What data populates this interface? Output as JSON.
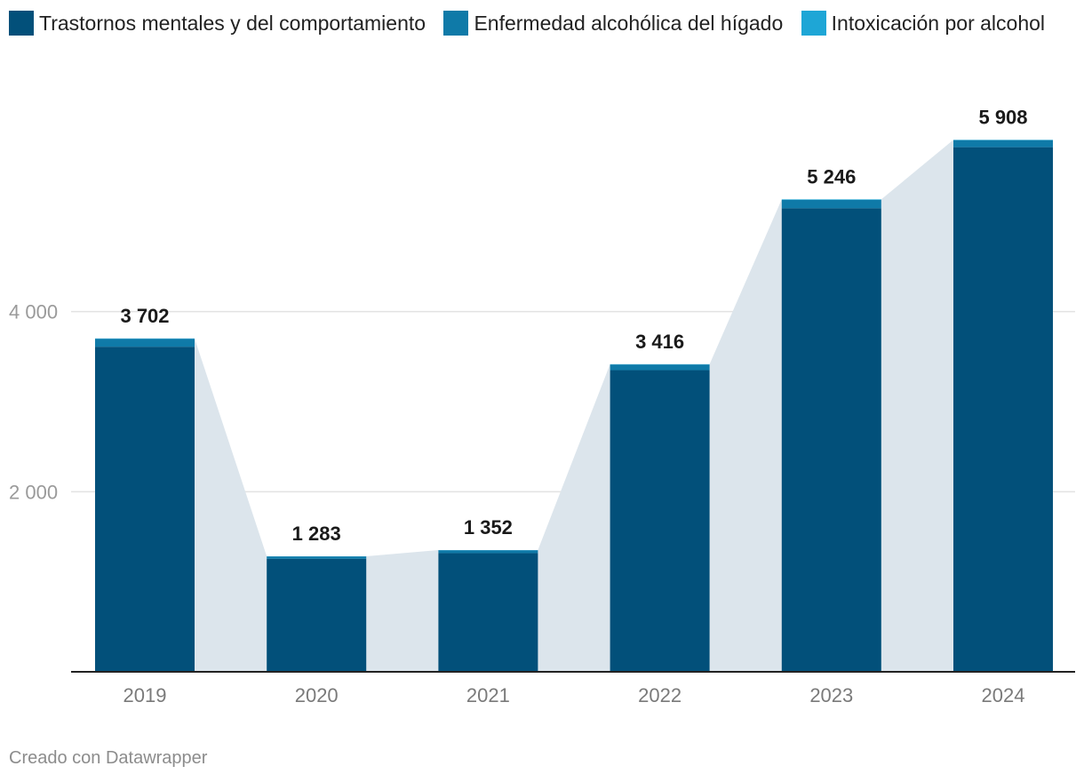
{
  "chart_data": {
    "type": "bar",
    "stacked": true,
    "title": "",
    "xlabel": "",
    "ylabel": "",
    "ylim": [
      0,
      6000
    ],
    "grid": true,
    "categories": [
      "2019",
      "2020",
      "2021",
      "2022",
      "2023",
      "2024"
    ],
    "series": [
      {
        "name": "Trastornos mentales y del comportamiento",
        "color": "#02507a",
        "values": [
          3610,
          1255,
          1318,
          3350,
          5148,
          5826
        ]
      },
      {
        "name": "Enfermedad alcohólica del hígado",
        "color": "#0f7aa8",
        "values": [
          88,
          26,
          32,
          62,
          92,
          78
        ]
      },
      {
        "name": "Intoxicación por alcohol",
        "color": "#1ea6d6",
        "values": [
          4,
          2,
          2,
          4,
          6,
          4
        ]
      }
    ],
    "totals": [
      3702,
      1283,
      1352,
      3416,
      5246,
      5908
    ],
    "total_labels": [
      "3 702",
      "1 283",
      "1 352",
      "3 416",
      "5 246",
      "5 908"
    ],
    "yticks": [
      {
        "value": 2000,
        "label": "2 000"
      },
      {
        "value": 4000,
        "label": "4 000"
      }
    ],
    "area_color": "#dce5ec",
    "gridline_color": "#e2e2e2"
  },
  "footer": "Creado con Datawrapper"
}
